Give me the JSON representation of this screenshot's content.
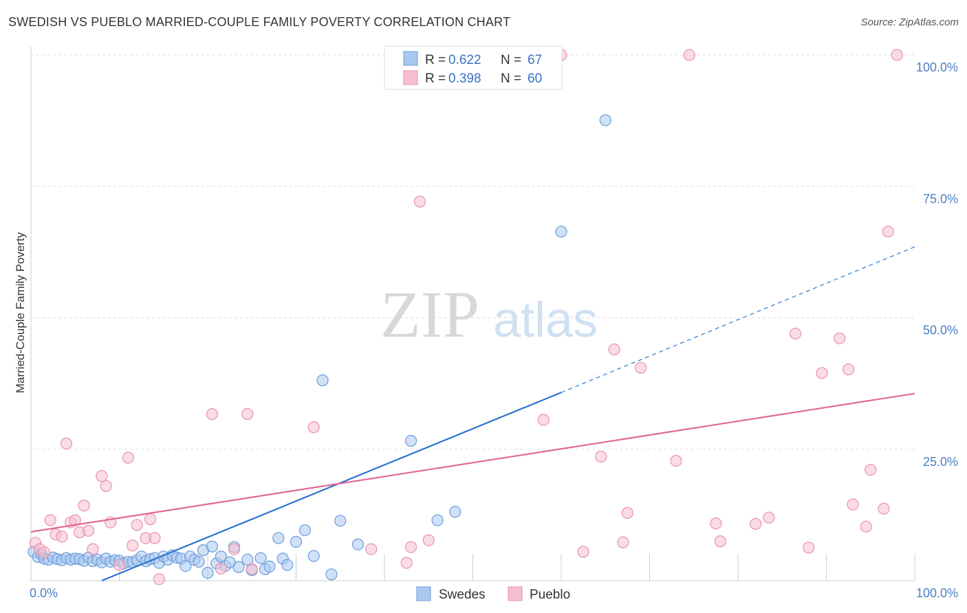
{
  "header": {
    "title": "SWEDISH VS PUEBLO MARRIED-COUPLE FAMILY POVERTY CORRELATION CHART",
    "source": "Source: ZipAtlas.com"
  },
  "watermark": {
    "zip": "ZIP",
    "atlas": "atlas"
  },
  "colors": {
    "swedes_fill": "#a9c8f0",
    "swedes_stroke": "#6b9bd8",
    "swedes_line": "#2a74d0",
    "pueblo_fill": "#f6bfd0",
    "pueblo_stroke": "#e891ad",
    "pueblo_line": "#e0679a",
    "grid": "#dddddd",
    "tick_label": "#4a7fc1"
  },
  "legend": {
    "rows": [
      {
        "r_label": "R = ",
        "r_value": "0.622",
        "n_label": "N = ",
        "n_value": "67"
      },
      {
        "r_label": "R = ",
        "r_value": "0.398",
        "n_label": "N = ",
        "n_value": "60"
      }
    ]
  },
  "chart_data": {
    "type": "scatter",
    "title": "SWEDISH VS PUEBLO MARRIED-COUPLE FAMILY POVERTY CORRELATION CHART",
    "xlabel": "",
    "ylabel": "Married-Couple Family Poverty",
    "xlim": [
      0,
      100
    ],
    "ylim": [
      0,
      100
    ],
    "x_tick_labels": [
      "0.0%",
      "100.0%"
    ],
    "y_ticks": [
      25,
      50,
      75,
      100
    ],
    "y_tick_labels": [
      "25.0%",
      "50.0%",
      "75.0%",
      "100.0%"
    ],
    "grid": true,
    "legend_position": "top-center",
    "bottom_legend_position": "bottom-center",
    "series": [
      {
        "name": "Swedes",
        "r": 0.622,
        "n": 67,
        "points": [
          [
            0.3,
            5.5
          ],
          [
            0.8,
            4.5
          ],
          [
            1.2,
            5.0
          ],
          [
            1.5,
            4.2
          ],
          [
            2.0,
            4.0
          ],
          [
            2.5,
            4.4
          ],
          [
            3.0,
            4.1
          ],
          [
            3.5,
            3.9
          ],
          [
            4.0,
            4.3
          ],
          [
            4.5,
            4.0
          ],
          [
            5.0,
            4.2
          ],
          [
            5.5,
            4.1
          ],
          [
            6.0,
            3.8
          ],
          [
            6.5,
            4.4
          ],
          [
            7.0,
            3.7
          ],
          [
            7.5,
            4.0
          ],
          [
            8.0,
            3.5
          ],
          [
            8.5,
            4.2
          ],
          [
            9.0,
            3.6
          ],
          [
            9.5,
            3.9
          ],
          [
            10.0,
            3.8
          ],
          [
            10.5,
            3.3
          ],
          [
            11.0,
            3.6
          ],
          [
            11.5,
            3.5
          ],
          [
            12.0,
            3.9
          ],
          [
            12.5,
            4.6
          ],
          [
            13.0,
            3.7
          ],
          [
            13.5,
            4.1
          ],
          [
            14.0,
            4.3
          ],
          [
            14.5,
            3.4
          ],
          [
            15.0,
            4.6
          ],
          [
            15.5,
            4.0
          ],
          [
            16.0,
            4.8
          ],
          [
            16.5,
            4.4
          ],
          [
            17.0,
            4.2
          ],
          [
            17.5,
            2.8
          ],
          [
            18.0,
            4.6
          ],
          [
            18.5,
            4.0
          ],
          [
            19.0,
            3.6
          ],
          [
            19.5,
            5.8
          ],
          [
            20.0,
            1.5
          ],
          [
            20.5,
            6.5
          ],
          [
            21.0,
            3.3
          ],
          [
            21.5,
            4.6
          ],
          [
            22.0,
            2.8
          ],
          [
            22.5,
            3.5
          ],
          [
            23.0,
            6.4
          ],
          [
            23.5,
            2.6
          ],
          [
            24.5,
            4.0
          ],
          [
            25.0,
            2.0
          ],
          [
            26.0,
            4.3
          ],
          [
            26.5,
            2.2
          ],
          [
            27.0,
            2.7
          ],
          [
            28.0,
            8.1
          ],
          [
            28.5,
            4.2
          ],
          [
            29.0,
            3.0
          ],
          [
            30.0,
            7.4
          ],
          [
            31.0,
            9.6
          ],
          [
            32.0,
            4.7
          ],
          [
            33.0,
            38.1
          ],
          [
            34.0,
            1.2
          ],
          [
            35.0,
            11.4
          ],
          [
            37.0,
            6.9
          ],
          [
            43.0,
            26.6
          ],
          [
            46.0,
            11.5
          ],
          [
            48.0,
            13.1
          ],
          [
            60.0,
            66.4
          ],
          [
            65.0,
            87.6
          ]
        ],
        "trend_line": {
          "x": [
            8.0,
            60.0
          ],
          "y": [
            0.0,
            35.8
          ],
          "dashed_extension_to": [
            100.0,
            63.5
          ]
        }
      },
      {
        "name": "Pueblo",
        "r": 0.398,
        "n": 60,
        "points": [
          [
            0.5,
            7.2
          ],
          [
            1.0,
            6.0
          ],
          [
            1.5,
            5.4
          ],
          [
            2.2,
            11.5
          ],
          [
            2.8,
            8.8
          ],
          [
            3.5,
            8.4
          ],
          [
            4.0,
            26.1
          ],
          [
            4.5,
            11.1
          ],
          [
            5.0,
            11.5
          ],
          [
            5.5,
            9.2
          ],
          [
            6.0,
            14.3
          ],
          [
            6.5,
            9.5
          ],
          [
            7.0,
            6.0
          ],
          [
            8.0,
            19.9
          ],
          [
            8.5,
            18.0
          ],
          [
            9.0,
            11.1
          ],
          [
            10.0,
            3.0
          ],
          [
            11.0,
            23.4
          ],
          [
            11.5,
            6.7
          ],
          [
            12.0,
            10.6
          ],
          [
            13.0,
            8.1
          ],
          [
            13.5,
            11.7
          ],
          [
            14.0,
            8.1
          ],
          [
            14.5,
            0.3
          ],
          [
            20.5,
            31.7
          ],
          [
            21.5,
            2.3
          ],
          [
            23.0,
            6.0
          ],
          [
            24.5,
            31.7
          ],
          [
            25.0,
            2.2
          ],
          [
            32.0,
            29.2
          ],
          [
            38.5,
            6.0
          ],
          [
            42.5,
            3.4
          ],
          [
            43.0,
            6.4
          ],
          [
            44.0,
            72.1
          ],
          [
            45.0,
            7.7
          ],
          [
            58.0,
            30.6
          ],
          [
            60.0,
            100.0
          ],
          [
            62.5,
            5.5
          ],
          [
            64.5,
            23.6
          ],
          [
            66.0,
            44.0
          ],
          [
            67.0,
            7.3
          ],
          [
            67.5,
            12.9
          ],
          [
            69.0,
            40.5
          ],
          [
            73.0,
            22.8
          ],
          [
            74.5,
            100.0
          ],
          [
            77.5,
            10.9
          ],
          [
            78.0,
            7.5
          ],
          [
            82.0,
            10.8
          ],
          [
            83.5,
            12.0
          ],
          [
            86.5,
            47.0
          ],
          [
            88.0,
            6.3
          ],
          [
            89.5,
            39.5
          ],
          [
            91.5,
            46.1
          ],
          [
            92.5,
            40.2
          ],
          [
            93.0,
            14.5
          ],
          [
            94.5,
            10.3
          ],
          [
            95.0,
            21.1
          ],
          [
            96.5,
            13.7
          ],
          [
            97.0,
            66.4
          ],
          [
            98.0,
            100.0
          ]
        ],
        "trend_line": {
          "x": [
            0.0,
            100.0
          ],
          "y": [
            9.3,
            35.6
          ]
        }
      }
    ]
  },
  "bottom_legend": {
    "items": [
      {
        "label": "Swedes"
      },
      {
        "label": "Pueblo"
      }
    ]
  }
}
